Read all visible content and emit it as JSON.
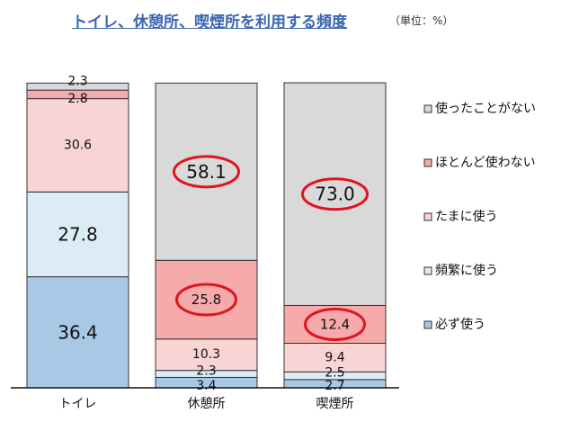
{
  "title": "トイレ、休憩所、喫煙所を利用する頻度",
  "unit": "（単位：%）",
  "chart_data": {
    "type": "bar",
    "stacked": true,
    "categories": [
      "トイレ",
      "休憩所",
      "喫煙所"
    ],
    "series": [
      {
        "name": "必ず使う",
        "color": "#a8c8e6",
        "values": [
          36.4,
          3.4,
          2.7
        ]
      },
      {
        "name": "頻繁に使う",
        "color": "#dcecf7",
        "values": [
          27.8,
          2.3,
          2.5
        ]
      },
      {
        "name": "たまに使う",
        "color": "#f8d4d4",
        "values": [
          30.6,
          10.3,
          9.4
        ]
      },
      {
        "name": "ほとんど使わない",
        "color": "#f7aaaa",
        "values": [
          2.8,
          25.8,
          12.4
        ]
      },
      {
        "name": "使ったことがない",
        "color": "#d9d9d9",
        "values": [
          2.3,
          58.1,
          73.0
        ]
      }
    ],
    "value_labels": [
      [
        "36.4",
        "27.8",
        "30.6",
        "2.8",
        "2.3"
      ],
      [
        "3.4",
        "2.3",
        "10.3",
        "25.8",
        "58.1"
      ],
      [
        "2.7",
        "2.5",
        "9.4",
        "12.4",
        "73.0"
      ]
    ],
    "circled": [
      [
        1,
        3
      ],
      [
        1,
        4
      ],
      [
        2,
        3
      ],
      [
        2,
        4
      ]
    ],
    "legend_order": [
      4,
      3,
      2,
      1,
      0
    ],
    "legend_position": "right",
    "ylim": [
      0,
      100
    ],
    "grid": false,
    "accent_circle_color": "#e0141e"
  }
}
